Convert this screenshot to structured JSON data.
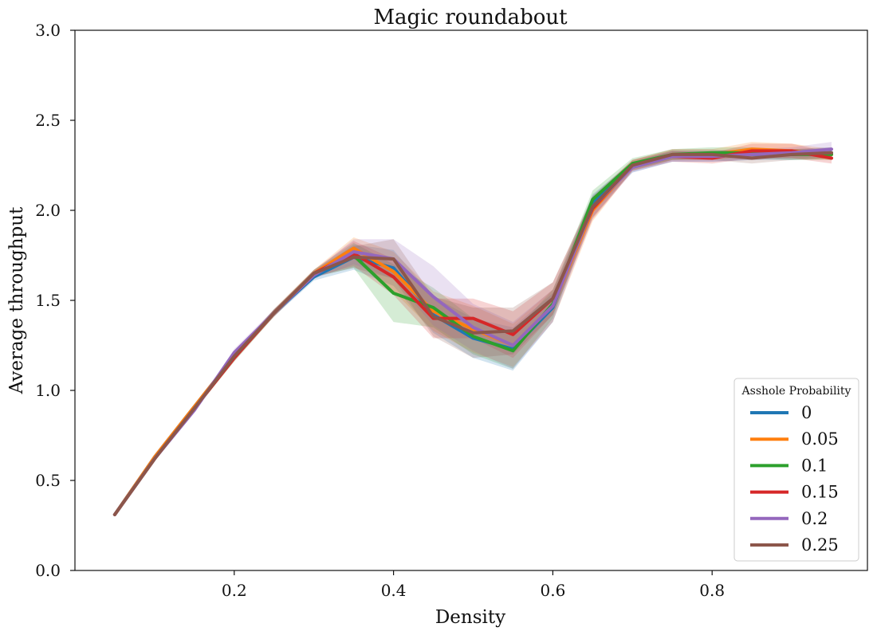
{
  "chart_data": {
    "type": "line",
    "title": "Magic roundabout",
    "xlabel": "Density",
    "ylabel": "Average throughput",
    "xlim": [
      0.0,
      0.995
    ],
    "ylim": [
      0.0,
      3.0
    ],
    "xticks": [
      0.2,
      0.4,
      0.6,
      0.8
    ],
    "xtick_labels": [
      "0.2",
      "0.4",
      "0.6",
      "0.8"
    ],
    "yticks": [
      0.0,
      0.5,
      1.0,
      1.5,
      2.0,
      2.5,
      3.0
    ],
    "ytick_labels": [
      "0.0",
      "0.5",
      "1.0",
      "1.5",
      "2.0",
      "2.5",
      "3.0"
    ],
    "grid": false,
    "legend": {
      "title": "Asshole Probability",
      "placement": "lower-right"
    },
    "x": [
      0.05,
      0.1,
      0.15,
      0.2,
      0.25,
      0.3,
      0.35,
      0.4,
      0.45,
      0.5,
      0.55,
      0.6,
      0.65,
      0.7,
      0.75,
      0.8,
      0.85,
      0.9,
      0.95
    ],
    "series": [
      {
        "name": "0",
        "color": "#1f77b4",
        "values": [
          0.31,
          0.63,
          0.91,
          1.19,
          1.43,
          1.63,
          1.74,
          1.68,
          1.42,
          1.29,
          1.23,
          1.46,
          2.04,
          2.24,
          2.3,
          2.3,
          2.31,
          2.31,
          2.32
        ],
        "lower": [
          0.3,
          0.62,
          0.9,
          1.17,
          1.41,
          1.61,
          1.67,
          1.58,
          1.32,
          1.18,
          1.11,
          1.38,
          1.99,
          2.21,
          2.27,
          2.27,
          2.28,
          2.28,
          2.29
        ],
        "upper": [
          0.32,
          0.64,
          0.92,
          1.21,
          1.45,
          1.65,
          1.81,
          1.78,
          1.52,
          1.4,
          1.35,
          1.54,
          2.09,
          2.27,
          2.33,
          2.33,
          2.34,
          2.34,
          2.35
        ]
      },
      {
        "name": "0.05",
        "color": "#ff7f0e",
        "values": [
          0.31,
          0.63,
          0.91,
          1.19,
          1.43,
          1.65,
          1.79,
          1.66,
          1.44,
          1.34,
          1.25,
          1.47,
          2.0,
          2.25,
          2.31,
          2.31,
          2.34,
          2.33,
          2.31
        ],
        "lower": [
          0.3,
          0.62,
          0.9,
          1.17,
          1.41,
          1.63,
          1.73,
          1.55,
          1.33,
          1.21,
          1.13,
          1.38,
          1.94,
          2.22,
          2.28,
          2.28,
          2.3,
          2.29,
          2.28
        ],
        "upper": [
          0.32,
          0.64,
          0.92,
          1.21,
          1.45,
          1.67,
          1.85,
          1.77,
          1.55,
          1.47,
          1.37,
          1.56,
          2.06,
          2.28,
          2.34,
          2.34,
          2.38,
          2.37,
          2.34
        ]
      },
      {
        "name": "0.1",
        "color": "#2ca02c",
        "values": [
          0.31,
          0.62,
          0.9,
          1.18,
          1.43,
          1.65,
          1.75,
          1.54,
          1.46,
          1.3,
          1.22,
          1.48,
          2.06,
          2.26,
          2.31,
          2.32,
          2.32,
          2.31,
          2.31
        ],
        "lower": [
          0.3,
          0.61,
          0.89,
          1.16,
          1.41,
          1.63,
          1.68,
          1.38,
          1.35,
          1.2,
          1.12,
          1.4,
          2.01,
          2.23,
          2.28,
          2.29,
          2.29,
          2.28,
          2.28
        ],
        "upper": [
          0.32,
          0.63,
          0.91,
          1.2,
          1.45,
          1.67,
          1.82,
          1.7,
          1.57,
          1.4,
          1.32,
          1.56,
          2.11,
          2.29,
          2.34,
          2.35,
          2.35,
          2.34,
          2.34
        ]
      },
      {
        "name": "0.15",
        "color": "#d62728",
        "values": [
          0.31,
          0.62,
          0.9,
          1.18,
          1.43,
          1.65,
          1.76,
          1.63,
          1.4,
          1.4,
          1.31,
          1.51,
          2.01,
          2.25,
          2.3,
          2.29,
          2.33,
          2.33,
          2.29
        ],
        "lower": [
          0.3,
          0.61,
          0.89,
          1.16,
          1.41,
          1.63,
          1.69,
          1.53,
          1.29,
          1.29,
          1.18,
          1.42,
          1.95,
          2.22,
          2.27,
          2.26,
          2.29,
          2.29,
          2.26
        ],
        "upper": [
          0.32,
          0.63,
          0.91,
          1.2,
          1.45,
          1.67,
          1.83,
          1.73,
          1.51,
          1.51,
          1.44,
          1.6,
          2.07,
          2.28,
          2.33,
          2.32,
          2.37,
          2.37,
          2.32
        ]
      },
      {
        "name": "0.2",
        "color": "#9467bd",
        "values": [
          0.31,
          0.62,
          0.89,
          1.21,
          1.43,
          1.64,
          1.77,
          1.73,
          1.52,
          1.35,
          1.25,
          1.47,
          2.02,
          2.24,
          2.3,
          2.3,
          2.31,
          2.32,
          2.34
        ],
        "lower": [
          0.3,
          0.61,
          0.88,
          1.19,
          1.41,
          1.62,
          1.7,
          1.62,
          1.36,
          1.22,
          1.12,
          1.38,
          1.96,
          2.21,
          2.27,
          2.27,
          2.28,
          2.29,
          2.3
        ],
        "upper": [
          0.32,
          0.63,
          0.9,
          1.23,
          1.45,
          1.66,
          1.84,
          1.84,
          1.69,
          1.48,
          1.38,
          1.56,
          2.08,
          2.27,
          2.33,
          2.33,
          2.34,
          2.35,
          2.38
        ]
      },
      {
        "name": "0.25",
        "color": "#8c564b",
        "values": [
          0.31,
          0.62,
          0.9,
          1.19,
          1.43,
          1.65,
          1.74,
          1.73,
          1.41,
          1.32,
          1.33,
          1.51,
          2.02,
          2.25,
          2.31,
          2.31,
          2.29,
          2.31,
          2.32
        ],
        "lower": [
          0.3,
          0.61,
          0.89,
          1.17,
          1.41,
          1.63,
          1.68,
          1.62,
          1.3,
          1.18,
          1.2,
          1.42,
          1.96,
          2.22,
          2.28,
          2.28,
          2.26,
          2.28,
          2.29
        ],
        "upper": [
          0.32,
          0.63,
          0.91,
          1.21,
          1.45,
          1.67,
          1.8,
          1.84,
          1.52,
          1.46,
          1.46,
          1.6,
          2.08,
          2.28,
          2.34,
          2.34,
          2.32,
          2.34,
          2.35
        ]
      }
    ]
  }
}
